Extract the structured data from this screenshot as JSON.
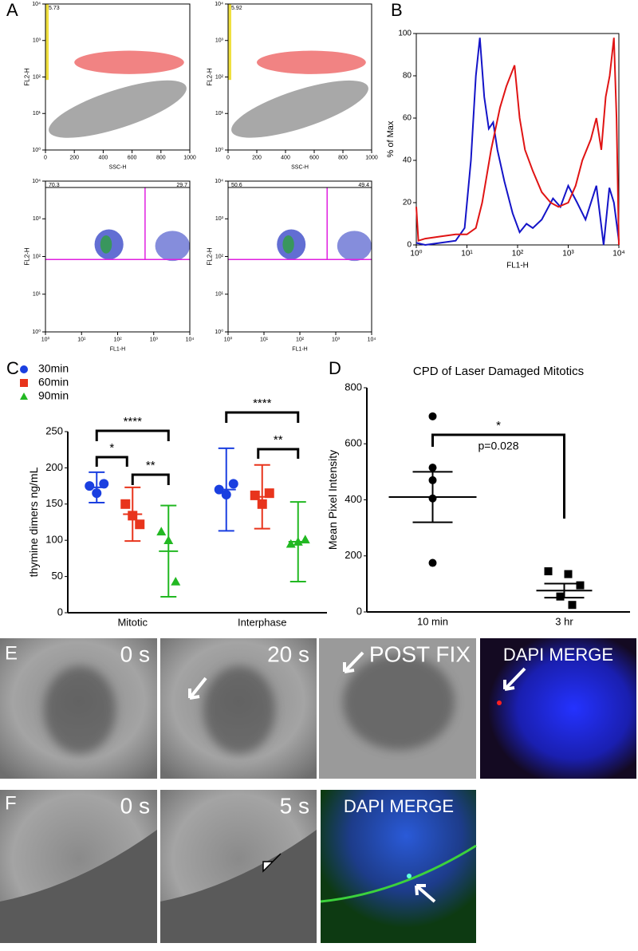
{
  "panel_labels": [
    "A",
    "B",
    "C",
    "D",
    "E",
    "F"
  ],
  "chart_data": [
    {
      "type": "flow",
      "xlabel": "SSC-H",
      "ylabel": "FL2-H",
      "xlim": [
        0,
        1000
      ],
      "xticks": [
        0,
        200,
        400,
        600,
        800,
        1000
      ],
      "ylim": [
        1,
        10000
      ],
      "y_log": true,
      "yticks": [
        {
          "value": 1,
          "label": "10⁰"
        },
        {
          "value": 10,
          "label": "10¹"
        },
        {
          "value": 100,
          "label": "10²"
        },
        {
          "value": 1000,
          "label": "10³"
        },
        {
          "value": 10000,
          "label": "10⁴"
        }
      ],
      "gate_percents": [
        5.73
      ]
    },
    {
      "type": "flow",
      "xlabel": "SSC-H",
      "ylabel": "FL2-H",
      "xlim": [
        0,
        1000
      ],
      "xticks": [
        0,
        200,
        400,
        600,
        800,
        1000
      ],
      "ylim": [
        1,
        10000
      ],
      "y_log": true,
      "yticks": [
        {
          "value": 1,
          "label": "10⁰"
        },
        {
          "value": 10,
          "label": "10¹"
        },
        {
          "value": 100,
          "label": "10²"
        },
        {
          "value": 1000,
          "label": "10³"
        },
        {
          "value": 10000,
          "label": "10⁴"
        }
      ],
      "gate_percents": [
        5.92
      ]
    },
    {
      "type": "flow",
      "xlabel": "FL1-H",
      "ylabel": "FL2-H",
      "xlim": [
        1,
        10000
      ],
      "x_log": true,
      "xticks": [
        {
          "value": 1,
          "label": "10⁰"
        },
        {
          "value": 10,
          "label": "10¹"
        },
        {
          "value": 100,
          "label": "10²"
        },
        {
          "value": 1000,
          "label": "10³"
        },
        {
          "value": 10000,
          "label": "10⁴"
        }
      ],
      "ylim": [
        1,
        10000
      ],
      "y_log": true,
      "yticks": [
        {
          "value": 1,
          "label": "10⁰"
        },
        {
          "value": 10,
          "label": "10¹"
        },
        {
          "value": 100,
          "label": "10²"
        },
        {
          "value": 1000,
          "label": "10³"
        },
        {
          "value": 10000,
          "label": "10⁴"
        }
      ],
      "gate_percents": [
        70.3,
        29.7
      ]
    },
    {
      "type": "flow",
      "xlabel": "FL1-H",
      "ylabel": "FL2-H",
      "xlim": [
        1,
        10000
      ],
      "x_log": true,
      "xticks": [
        {
          "value": 1,
          "label": "10⁰"
        },
        {
          "value": 10,
          "label": "10¹"
        },
        {
          "value": 100,
          "label": "10²"
        },
        {
          "value": 1000,
          "label": "10³"
        },
        {
          "value": 10000,
          "label": "10⁴"
        }
      ],
      "ylim": [
        1,
        10000
      ],
      "y_log": true,
      "yticks": [
        {
          "value": 1,
          "label": "10⁰"
        },
        {
          "value": 10,
          "label": "10¹"
        },
        {
          "value": 100,
          "label": "10²"
        },
        {
          "value": 1000,
          "label": "10³"
        },
        {
          "value": 10000,
          "label": "10⁴"
        }
      ],
      "gate_percents": [
        50.6,
        49.4
      ]
    },
    {
      "type": "line",
      "xlabel": "FL1-H",
      "ylabel": "% of Max",
      "xlim": [
        1,
        10000
      ],
      "x_log": true,
      "xticks": [
        {
          "value": 1,
          "label": "10⁰"
        },
        {
          "value": 10,
          "label": "10¹"
        },
        {
          "value": 100,
          "label": "10²"
        },
        {
          "value": 1000,
          "label": "10³"
        },
        {
          "value": 10000,
          "label": "10⁴"
        }
      ],
      "ylim": [
        0,
        100
      ],
      "yticks": [
        0,
        20,
        40,
        60,
        80,
        100
      ],
      "series": [
        {
          "color": "#1414c8",
          "x": [
            1,
            1.5,
            3,
            6,
            9,
            12,
            15,
            18,
            22,
            27,
            33,
            40,
            55,
            80,
            110,
            150,
            200,
            300,
            500,
            700,
            1000,
            1500,
            2200,
            3600,
            5000,
            6500,
            8000,
            10000
          ],
          "values": [
            1,
            0,
            1,
            2,
            8,
            40,
            80,
            98,
            70,
            55,
            58,
            45,
            30,
            15,
            6,
            10,
            8,
            12,
            22,
            18,
            28,
            20,
            12,
            28,
            0,
            27,
            20,
            2
          ]
        },
        {
          "color": "#e01414",
          "x": [
            1,
            1.1,
            1.5,
            3,
            6,
            10,
            15,
            20,
            30,
            45,
            60,
            87,
            110,
            140,
            200,
            300,
            450,
            640,
            1000,
            1400,
            1900,
            2800,
            3600,
            4500,
            5500,
            6600,
            8000,
            9000,
            10000
          ],
          "values": [
            18,
            2,
            3,
            4,
            5,
            5,
            8,
            20,
            45,
            65,
            75,
            85,
            60,
            45,
            35,
            25,
            20,
            18,
            20,
            28,
            40,
            50,
            60,
            45,
            70,
            80,
            98,
            60,
            0
          ]
        }
      ]
    },
    {
      "type": "dot",
      "ylabel": "thymine dimers ng/mL",
      "categories": [
        "Mitotic",
        "Interphase"
      ],
      "ylim": [
        0,
        250
      ],
      "yticks": [
        0,
        50,
        100,
        150,
        200,
        250
      ],
      "series": [
        {
          "name": "30min",
          "color": "#1a3fe0",
          "marker": "circle",
          "values": [
            [
              175,
              165,
              178
            ],
            [
              170,
              163,
              178
            ]
          ],
          "means": [
            173,
            170
          ],
          "errors": [
            21,
            57
          ]
        },
        {
          "name": "60min",
          "color": "#e8341c",
          "marker": "square",
          "values": [
            [
              150,
              134,
              122
            ],
            [
              162,
              150,
              165
            ]
          ],
          "means": [
            136,
            160
          ],
          "errors": [
            37,
            44
          ]
        },
        {
          "name": "90min",
          "color": "#22b822",
          "marker": "triangle",
          "values": [
            [
              112,
              100,
              43
            ],
            [
              95,
              98,
              101
            ]
          ],
          "means": [
            85,
            98
          ],
          "errors": [
            63,
            55
          ]
        }
      ],
      "annotations": [
        "****",
        "*",
        "**",
        "****",
        "**"
      ]
    },
    {
      "type": "dot",
      "title": "CPD of Laser Damaged Mitotics",
      "ylabel": "Mean Pixel Intensity",
      "categories": [
        "10 min",
        "3 hr"
      ],
      "ylim": [
        0,
        800
      ],
      "yticks": [
        0,
        200,
        400,
        600,
        800
      ],
      "series": [
        {
          "color": "#000000",
          "markers": [
            "circle",
            "square"
          ],
          "values": [
            [
              698,
              515,
              470,
              405,
              175
            ],
            [
              145,
              135,
              95,
              55,
              25
            ]
          ],
          "means": [
            410,
            76
          ],
          "errors": [
            90,
            25
          ]
        }
      ],
      "annotations": [
        "*",
        "p=0.028"
      ]
    }
  ],
  "micrographs": {
    "e": [
      "0 s",
      "20 s",
      "POST FIX",
      "DAPI MERGE"
    ],
    "f": [
      "0 s",
      "5 s",
      "DAPI MERGE"
    ]
  }
}
